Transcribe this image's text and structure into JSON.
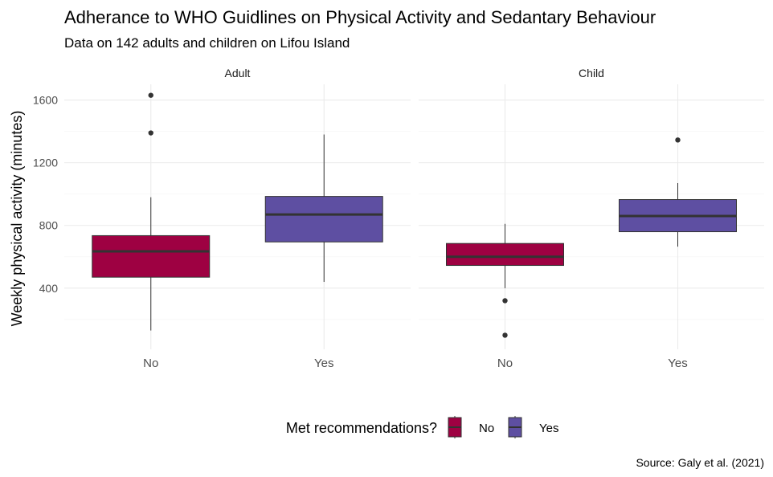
{
  "chart_data": {
    "type": "boxplot",
    "title": "Adherance to WHO Guidlines on Physical Activity and Sedantary Behaviour",
    "subtitle": "Data on 142 adults and children on Lifou Island",
    "caption": "Source: Galy et al. (2021)",
    "ylabel": "Weekly physical activity (minutes)",
    "xlabel": "",
    "ylim": [
      10,
      1700
    ],
    "yticks": [
      400,
      800,
      1200,
      1600
    ],
    "grid": true,
    "legend": {
      "title": "Met recommendations?",
      "position": "bottom",
      "items": [
        {
          "label": "No",
          "color": "#9E0142"
        },
        {
          "label": "Yes",
          "color": "#5E4FA2"
        }
      ]
    },
    "categories": [
      "No",
      "Yes"
    ],
    "facets": [
      {
        "label": "Adult",
        "boxes": [
          {
            "category": "No",
            "min": 130,
            "q1": 470,
            "median": 635,
            "q3": 735,
            "max": 980,
            "outliers": [
              1390,
              1630
            ],
            "color": "#9E0142"
          },
          {
            "category": "Yes",
            "min": 440,
            "q1": 695,
            "median": 870,
            "q3": 985,
            "max": 1380,
            "outliers": [],
            "color": "#5E4FA2"
          }
        ]
      },
      {
        "label": "Child",
        "boxes": [
          {
            "category": "No",
            "min": 400,
            "q1": 545,
            "median": 600,
            "q3": 685,
            "max": 810,
            "outliers": [
              320,
              100
            ],
            "color": "#9E0142"
          },
          {
            "category": "Yes",
            "min": 665,
            "q1": 760,
            "median": 860,
            "q3": 965,
            "max": 1070,
            "outliers": [
              1345
            ],
            "color": "#5E4FA2"
          }
        ]
      }
    ]
  }
}
